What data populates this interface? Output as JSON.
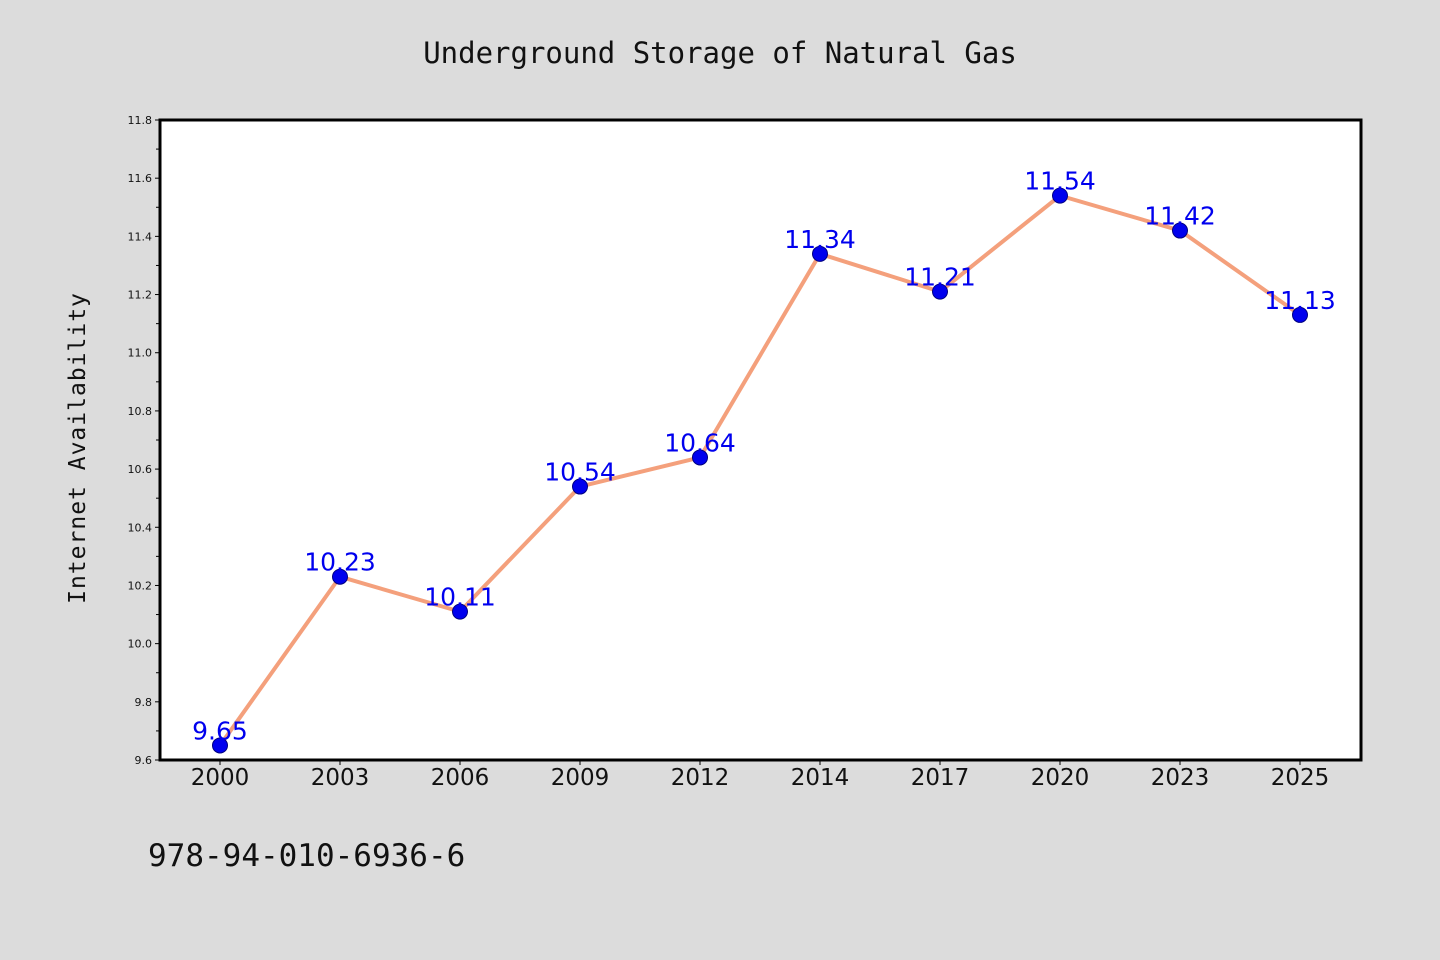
{
  "chart_data": {
    "type": "line",
    "title": "Underground Storage of Natural Gas",
    "xlabel": "",
    "ylabel": "Internet Availability",
    "categories": [
      "2000",
      "2003",
      "2006",
      "2009",
      "2012",
      "2014",
      "2017",
      "2020",
      "2023",
      "2025"
    ],
    "values": [
      9.65,
      10.23,
      10.11,
      10.54,
      10.64,
      11.34,
      11.21,
      11.54,
      11.42,
      11.13
    ],
    "data_labels": [
      "9.65",
      "10.23",
      "10.11",
      "10.54",
      "10.64",
      "11.34",
      "11.21",
      "11.54",
      "11.42",
      "11.13"
    ],
    "ylim": [
      9.6,
      11.8
    ],
    "yticks": [
      "9.6",
      "9.8",
      "10.0",
      "10.2",
      "10.4",
      "10.6",
      "10.8",
      "11.0",
      "11.2",
      "11.4",
      "11.6",
      "11.8"
    ],
    "grid": false,
    "legend": "none",
    "colors": {
      "line": "#f4a07c",
      "marker_fill": "#0000ee",
      "marker_edge": "#000080",
      "data_label": "#0000ee",
      "plot_background": "#ffffff",
      "page_background": "#dcdcdc"
    }
  },
  "footer": {
    "text": "978-94-010-6936-6"
  }
}
